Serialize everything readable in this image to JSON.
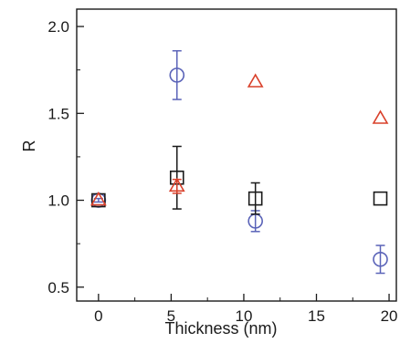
{
  "chart_data": {
    "type": "scatter",
    "xlabel": "Thickness (nm)",
    "ylabel": "R",
    "xlim": [
      -1.5,
      20.5
    ],
    "ylim": [
      0.42,
      2.1
    ],
    "xticks": [
      0,
      5,
      10,
      15,
      20
    ],
    "yticks": [
      0.5,
      1.0,
      1.5,
      2.0
    ],
    "xtick_labels": [
      "0",
      "5",
      "10",
      "15",
      "20"
    ],
    "ytick_labels": [
      "0.5",
      "1.0",
      "1.5",
      "2.0"
    ],
    "grid": false,
    "legend": "none",
    "series": [
      {
        "marker": "circle",
        "color": "#5a63b8",
        "points": [
          {
            "x": 0,
            "y": 1.0,
            "err": 0.01
          },
          {
            "x": 5.4,
            "y": 1.72,
            "err": 0.14
          },
          {
            "x": 10.8,
            "y": 0.88,
            "err": 0.06
          },
          {
            "x": 19.4,
            "y": 0.66,
            "err": 0.08
          }
        ]
      },
      {
        "marker": "square",
        "color": "#1a1a1a",
        "points": [
          {
            "x": 0,
            "y": 1.0,
            "err": 0.0
          },
          {
            "x": 5.4,
            "y": 1.13,
            "err": 0.18
          },
          {
            "x": 10.8,
            "y": 1.01,
            "err": 0.09
          },
          {
            "x": 19.4,
            "y": 1.01,
            "err": 0.0
          }
        ]
      },
      {
        "marker": "triangle",
        "color": "#d9402a",
        "points": [
          {
            "x": 0,
            "y": 1.0,
            "err": 0.0
          },
          {
            "x": 5.4,
            "y": 1.08,
            "err": 0.04
          },
          {
            "x": 10.8,
            "y": 1.68,
            "err": 0.0
          },
          {
            "x": 19.4,
            "y": 1.47,
            "err": 0.0
          }
        ]
      }
    ]
  }
}
